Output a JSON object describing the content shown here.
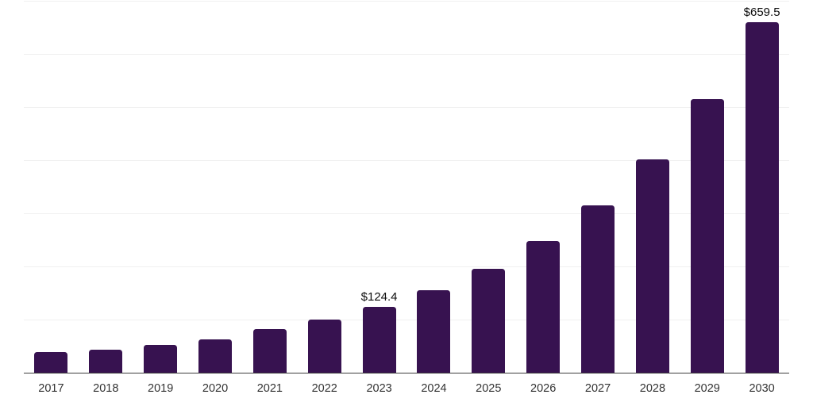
{
  "chart_data": {
    "type": "bar",
    "title": "",
    "xlabel": "",
    "ylabel": "",
    "categories": [
      "2017",
      "2018",
      "2019",
      "2020",
      "2021",
      "2022",
      "2023",
      "2024",
      "2025",
      "2026",
      "2027",
      "2028",
      "2029",
      "2030"
    ],
    "values": [
      39.5,
      44.0,
      52.5,
      63.5,
      81.5,
      99.5,
      124.4,
      155.0,
      196.0,
      248.5,
      315.0,
      401.5,
      515.0,
      659.5
    ],
    "data_labels": [
      {
        "category": "2023",
        "text": "$124.4"
      },
      {
        "category": "2030",
        "text": "$659.5"
      }
    ],
    "ylim": [
      0,
      700
    ],
    "gridlines": {
      "orientation": "horizontal",
      "step": 100,
      "visible": true
    },
    "y_axis_tick_labels": "none",
    "legend": "none",
    "colors": {
      "bar": "#371250",
      "gridline": "#f0f0f0",
      "axis_line": "#3e3e3e",
      "tick_label": "#333333",
      "data_label": "#0d0d0d",
      "background": "#ffffff"
    }
  }
}
